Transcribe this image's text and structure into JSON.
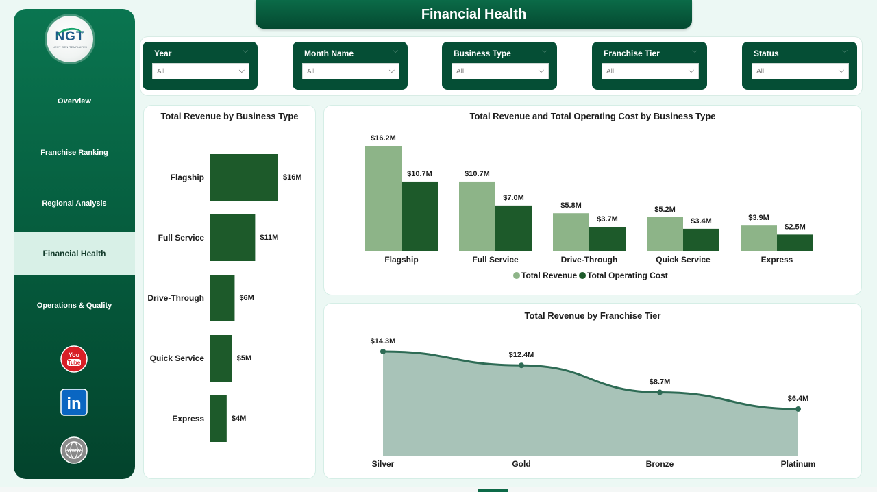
{
  "header": {
    "title": "Financial Health"
  },
  "sidebar": {
    "logo": {
      "text": "NGT",
      "subtext": "NEXT GEN TEMPLATES"
    },
    "items": [
      {
        "label": "Overview",
        "active": false
      },
      {
        "label": "Franchise Ranking",
        "active": false
      },
      {
        "label": "Regional Analysis",
        "active": false
      },
      {
        "label": "Financial Health",
        "active": true
      },
      {
        "label": "Operations & Quality",
        "active": false
      }
    ],
    "social": [
      {
        "icon": "youtube-icon",
        "text": "You Tube",
        "color": "#d81f26"
      },
      {
        "icon": "linkedin-icon",
        "text": "in",
        "color": "#0a66c2"
      },
      {
        "icon": "globe-icon",
        "text": "WWW",
        "color": "#8a8a8a"
      }
    ]
  },
  "filters": [
    {
      "label": "Year",
      "value": "All"
    },
    {
      "label": "Month Name",
      "value": "All"
    },
    {
      "label": "Business Type",
      "value": "All"
    },
    {
      "label": "Franchise Tier",
      "value": "All"
    },
    {
      "label": "Status",
      "value": "All"
    }
  ],
  "colors": {
    "dark_green": "#1d5a2a",
    "light_green": "#8db488",
    "area_fill": "#a8c3b8",
    "area_line": "#2e6b55"
  },
  "chart_data": [
    {
      "type": "bar",
      "orientation": "horizontal",
      "title": "Total Revenue by Business Type",
      "categories": [
        "Flagship",
        "Full Service",
        "Drive-Through",
        "Quick Service",
        "Express"
      ],
      "values": [
        16.2,
        10.7,
        5.8,
        5.2,
        3.9
      ],
      "data_labels": [
        "$16M",
        "$11M",
        "$6M",
        "$5M",
        "$4M"
      ],
      "unit": "M"
    },
    {
      "type": "bar",
      "title": "Total Revenue and Total Operating Cost by Business Type",
      "categories": [
        "Flagship",
        "Full Service",
        "Drive-Through",
        "Quick Service",
        "Express"
      ],
      "series": [
        {
          "name": "Total Revenue",
          "values": [
            16.2,
            10.7,
            5.8,
            5.2,
            3.9
          ],
          "labels": [
            "$16.2M",
            "$10.7M",
            "$5.8M",
            "$5.2M",
            "$3.9M"
          ],
          "color": "#8db488"
        },
        {
          "name": "Total Operating Cost",
          "values": [
            10.7,
            7.0,
            3.7,
            3.4,
            2.5
          ],
          "labels": [
            "$10.7M",
            "$7.0M",
            "$3.7M",
            "$3.4M",
            "$2.5M"
          ],
          "color": "#1d5a2a"
        }
      ],
      "legend": "bottom-center",
      "unit": "M"
    },
    {
      "type": "area",
      "title": "Total Revenue by Franchise Tier",
      "categories": [
        "Silver",
        "Gold",
        "Bronze",
        "Platinum"
      ],
      "values": [
        14.3,
        12.4,
        8.7,
        6.4
      ],
      "labels": [
        "$14.3M",
        "$12.4M",
        "$8.7M",
        "$6.4M"
      ],
      "unit": "M"
    }
  ]
}
